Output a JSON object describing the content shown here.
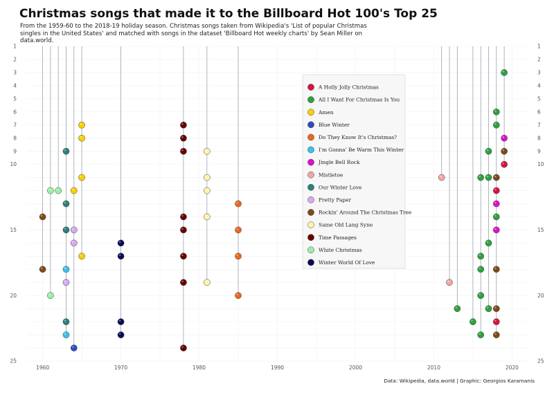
{
  "chart_data": {
    "type": "scatter",
    "title": "Christmas songs that made it to the Billboard Hot 100's Top 25",
    "subtitle": "From the 1959-60 to the 2018-19 holiday season. Christmas songs taken from Wikipedia's 'List of popular Christmas singles in the United States' and matched with songs in the dataset 'Billboard Hot weekly charts' by Sean Miller on data.world.",
    "caption": "Data: Wikipedia, data.world | Graphic: Georgios Karamanis",
    "xlabel": "",
    "ylabel": "",
    "xlim": [
      1958,
      2022
    ],
    "ylim": [
      1,
      25
    ],
    "y_reversed": true,
    "x_ticks": [
      1960,
      1970,
      1980,
      1990,
      2000,
      2010,
      2020
    ],
    "y_ticks": [
      1,
      2,
      3,
      4,
      5,
      6,
      7,
      8,
      9,
      10,
      15,
      20,
      25
    ],
    "legend_position": "top-right",
    "series": [
      {
        "name": "A Holly Jolly Christmas",
        "color": "#d8133f",
        "years": [
          2019,
          2018,
          2018
        ],
        "ranks": [
          10,
          12,
          22
        ]
      },
      {
        "name": "All I Want For Christmas Is You",
        "color": "#2ea13e",
        "years": [
          2019,
          2018,
          2018,
          2017,
          2017,
          2016,
          2018,
          2017,
          2016,
          2016,
          2016,
          2013,
          2017,
          2015,
          2016
        ],
        "ranks": [
          3,
          6,
          7,
          9,
          11,
          11,
          14,
          16,
          17,
          18,
          20,
          21,
          21,
          22,
          23
        ]
      },
      {
        "name": "Amen",
        "color": "#f7d000",
        "years": [
          1965,
          1965,
          1965,
          1964,
          1965
        ],
        "ranks": [
          7,
          8,
          11,
          12,
          17
        ]
      },
      {
        "name": "Blue Winter",
        "color": "#2e4bbf",
        "years": [
          1964
        ],
        "ranks": [
          24
        ]
      },
      {
        "name": "Do They Know It's Christmas?",
        "color": "#e8681f",
        "years": [
          1985,
          1985,
          1985,
          1985
        ],
        "ranks": [
          13,
          15,
          17,
          20
        ]
      },
      {
        "name": "I'm Gonna' Be Warm This Winter",
        "color": "#3ec0ea",
        "years": [
          1963,
          1963
        ],
        "ranks": [
          18,
          23
        ]
      },
      {
        "name": "Jingle Bell Rock",
        "color": "#e010c8",
        "years": [
          2019,
          2018,
          2018
        ],
        "ranks": [
          8,
          13,
          15
        ]
      },
      {
        "name": "Mistletoe",
        "color": "#f0a8a2",
        "years": [
          2011,
          2012
        ],
        "ranks": [
          11,
          19
        ]
      },
      {
        "name": "Our Winter Love",
        "color": "#2e7f78",
        "years": [
          1963,
          1963,
          1963,
          1963
        ],
        "ranks": [
          9,
          13,
          15,
          22
        ]
      },
      {
        "name": "Pretty Paper",
        "color": "#d9a8f0",
        "years": [
          1964,
          1964,
          1963
        ],
        "ranks": [
          15,
          16,
          19
        ]
      },
      {
        "name": "Rockin' Around The Christmas Tree",
        "color": "#7f4a17",
        "years": [
          2019,
          2018,
          1960,
          1960,
          2018,
          2018,
          2018
        ],
        "ranks": [
          9,
          11,
          14,
          18,
          18,
          21,
          23
        ]
      },
      {
        "name": "Same Old Lang Syne",
        "color": "#fff3ac",
        "years": [
          1981,
          1981,
          1981,
          1981,
          1981
        ],
        "ranks": [
          9,
          11,
          12,
          14,
          19
        ]
      },
      {
        "name": "Time Passages",
        "color": "#6a0000",
        "years": [
          1978,
          1978,
          1978,
          1978,
          1978,
          1978,
          1978,
          1978
        ],
        "ranks": [
          7,
          8,
          9,
          14,
          15,
          17,
          19,
          24
        ]
      },
      {
        "name": "White Christmas",
        "color": "#99f0a8",
        "years": [
          1961,
          1962,
          1961
        ],
        "ranks": [
          12,
          12,
          20
        ]
      },
      {
        "name": "Winter World Of Love",
        "color": "#0a0a5a",
        "years": [
          1970,
          1970,
          1970,
          1970
        ],
        "ranks": [
          16,
          17,
          22,
          23
        ]
      }
    ]
  }
}
